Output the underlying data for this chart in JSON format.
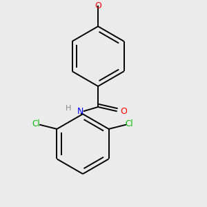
{
  "background_color": "#ebebeb",
  "bond_color": "#000000",
  "atom_colors": {
    "O": "#ff0000",
    "N": "#0000ff",
    "Cl": "#00bb00",
    "H": "#888888"
  },
  "bond_lw": 1.4,
  "dbo": 0.035,
  "figsize": [
    3.0,
    3.0
  ],
  "dpi": 100
}
